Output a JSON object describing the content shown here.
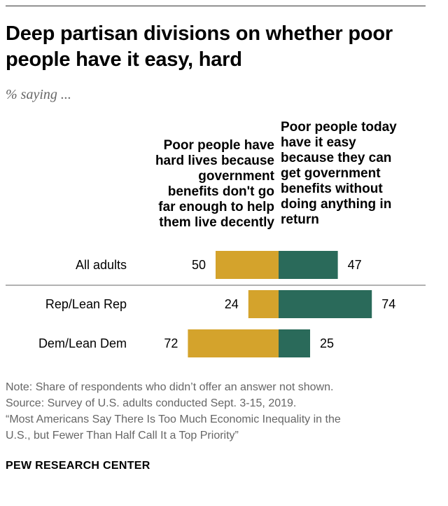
{
  "title": "Deep partisan divisions on whether poor people have it easy, hard",
  "subtitle": "% saying ...",
  "chart_data": {
    "type": "bar",
    "orientation": "horizontal-diverging",
    "categories": [
      "All adults",
      "Rep/Lean Rep",
      "Dem/Lean Dem"
    ],
    "series": [
      {
        "name": "Poor people have hard lives because government benefits don't go far enough to help them live decently",
        "color": "#d4a32c",
        "values": [
          50,
          24,
          72
        ]
      },
      {
        "name": "Poor people today have it easy because they can get government benefits without doing anything in return",
        "color": "#2a6a5a",
        "values": [
          47,
          74,
          25
        ]
      }
    ],
    "separator_after_category": 0
  },
  "headers": {
    "left": [
      "Poor people have",
      "hard lives because",
      "government",
      "benefits don't go",
      "far enough to help",
      "them live decently"
    ],
    "right": [
      "Poor people today",
      "have it easy",
      "because they can",
      "get government",
      "benefits without",
      "doing anything in",
      "return"
    ]
  },
  "footer": {
    "note": "Note: Share of respondents who didn’t offer an answer not shown.",
    "source": "Source: Survey of U.S. adults conducted Sept. 3-15, 2019.",
    "report_line1": "“Most Americans Say There Is Too Much Economic Inequality in the",
    "report_line2": "U.S., but Fewer Than Half Call It a Top Priority”",
    "org": "PEW RESEARCH CENTER"
  }
}
